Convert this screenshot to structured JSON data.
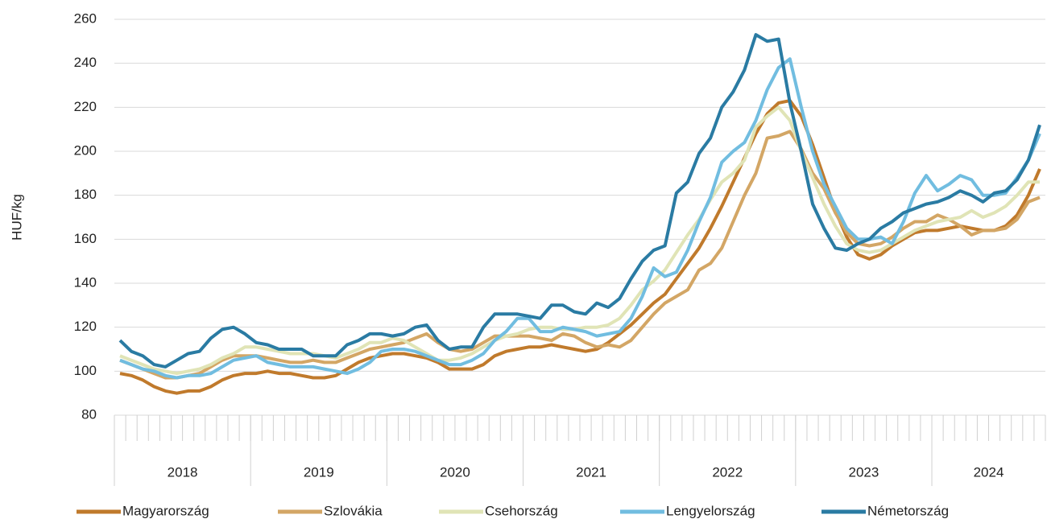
{
  "chart_data": {
    "type": "line",
    "y_label": "HUF/kg",
    "categories": [
      null,
      null,
      null,
      null,
      null,
      null,
      null,
      null,
      null,
      null,
      null,
      null,
      null,
      null,
      null,
      null,
      null,
      null,
      null,
      null,
      null,
      null,
      null,
      null,
      null,
      null,
      null,
      null,
      null,
      null,
      null,
      null,
      null,
      null,
      null,
      null,
      null,
      null,
      null,
      null,
      null,
      null,
      null,
      null,
      null,
      null,
      null,
      null,
      null,
      null,
      null,
      null,
      null,
      null,
      null,
      null,
      null,
      null,
      null,
      null,
      null,
      null,
      null,
      null,
      null,
      null,
      null,
      null,
      null,
      null,
      null,
      null,
      null,
      null,
      null,
      null,
      null,
      null,
      null,
      null,
      null,
      null
    ],
    "groups": [
      {
        "label": "2018",
        "count": 12
      },
      {
        "label": "2019",
        "count": 12
      },
      {
        "label": "2020",
        "count": 12
      },
      {
        "label": "2021",
        "count": 12
      },
      {
        "label": "2022",
        "count": 12
      },
      {
        "label": "2023",
        "count": 12
      },
      {
        "label": "2024",
        "count": 10
      }
    ],
    "ylim": [
      80,
      260
    ],
    "yticks": [
      80,
      100,
      120,
      140,
      160,
      180,
      200,
      220,
      240,
      260
    ],
    "grid": true,
    "series": [
      {
        "name": "Magyarország",
        "color": "#c07a2c",
        "values": [
          99,
          98,
          96,
          93,
          91,
          90,
          91,
          91,
          93,
          96,
          98,
          99,
          99,
          100,
          99,
          99,
          98,
          97,
          97,
          98,
          101,
          104,
          106,
          107,
          108,
          108,
          107,
          106,
          104,
          101,
          101,
          101,
          103,
          107,
          109,
          110,
          111,
          111,
          112,
          111,
          110,
          109,
          110,
          113,
          117,
          121,
          126,
          131,
          135,
          142,
          149,
          156,
          165,
          175,
          186,
          197,
          208,
          217,
          222,
          223,
          216,
          203,
          188,
          173,
          161,
          153,
          151,
          153,
          157,
          160,
          163,
          164,
          164,
          165,
          166,
          165,
          164,
          164,
          166,
          171,
          180,
          192
        ]
      },
      {
        "name": "Szlovákia",
        "color": "#d3a665",
        "values": [
          105,
          103,
          101,
          99,
          97,
          97,
          98,
          99,
          102,
          105,
          107,
          107,
          107,
          106,
          105,
          104,
          104,
          105,
          104,
          104,
          106,
          108,
          110,
          111,
          112,
          113,
          115,
          117,
          113,
          110,
          109,
          110,
          113,
          116,
          116,
          116,
          116,
          115,
          114,
          117,
          116,
          113,
          111,
          112,
          111,
          114,
          120,
          126,
          131,
          134,
          137,
          146,
          149,
          156,
          168,
          180,
          190,
          206,
          207,
          209,
          201,
          190,
          183,
          172,
          163,
          158,
          157,
          158,
          161,
          165,
          168,
          168,
          171,
          169,
          166,
          162,
          164,
          164,
          165,
          169,
          177,
          179
        ]
      },
      {
        "name": "Csehország",
        "color": "#e0e4b6",
        "values": [
          107,
          105,
          103,
          101,
          100,
          99,
          100,
          101,
          103,
          106,
          108,
          111,
          111,
          110,
          109,
          108,
          108,
          108,
          107,
          106,
          108,
          110,
          113,
          113,
          115,
          114,
          111,
          108,
          105,
          105,
          106,
          108,
          111,
          114,
          116,
          117,
          119,
          120,
          120,
          119,
          119,
          120,
          120,
          121,
          124,
          130,
          137,
          141,
          146,
          154,
          162,
          169,
          178,
          186,
          190,
          196,
          211,
          216,
          220,
          214,
          200,
          188,
          176,
          166,
          158,
          155,
          154,
          155,
          158,
          161,
          164,
          166,
          168,
          169,
          170,
          173,
          170,
          172,
          175,
          180,
          186,
          186
        ]
      },
      {
        "name": "Lengyelország",
        "color": "#71bde0",
        "values": [
          105,
          103,
          101,
          100,
          98,
          97,
          98,
          98,
          99,
          102,
          105,
          106,
          107,
          104,
          103,
          102,
          102,
          102,
          101,
          100,
          99,
          101,
          104,
          109,
          110,
          110,
          109,
          107,
          105,
          103,
          103,
          105,
          108,
          114,
          118,
          124,
          124,
          118,
          118,
          120,
          119,
          118,
          116,
          117,
          118,
          124,
          134,
          147,
          143,
          145,
          155,
          168,
          179,
          195,
          200,
          204,
          214,
          228,
          238,
          242,
          220,
          200,
          185,
          175,
          165,
          160,
          160,
          161,
          158,
          168,
          181,
          189,
          182,
          185,
          189,
          187,
          180,
          180,
          181,
          188,
          196,
          208
        ]
      },
      {
        "name": "Németország",
        "color": "#2a7ba3",
        "values": [
          114,
          109,
          107,
          103,
          102,
          105,
          108,
          109,
          115,
          119,
          120,
          117,
          113,
          112,
          110,
          110,
          110,
          107,
          107,
          107,
          112,
          114,
          117,
          117,
          116,
          117,
          120,
          121,
          114,
          110,
          111,
          111,
          120,
          126,
          126,
          126,
          125,
          124,
          130,
          130,
          127,
          126,
          131,
          129,
          133,
          142,
          150,
          155,
          157,
          181,
          186,
          199,
          206,
          220,
          227,
          237,
          253,
          250,
          251,
          222,
          200,
          176,
          165,
          156,
          155,
          158,
          160,
          165,
          168,
          172,
          174,
          176,
          177,
          179,
          182,
          180,
          177,
          181,
          182,
          187,
          196,
          212
        ]
      }
    ]
  }
}
